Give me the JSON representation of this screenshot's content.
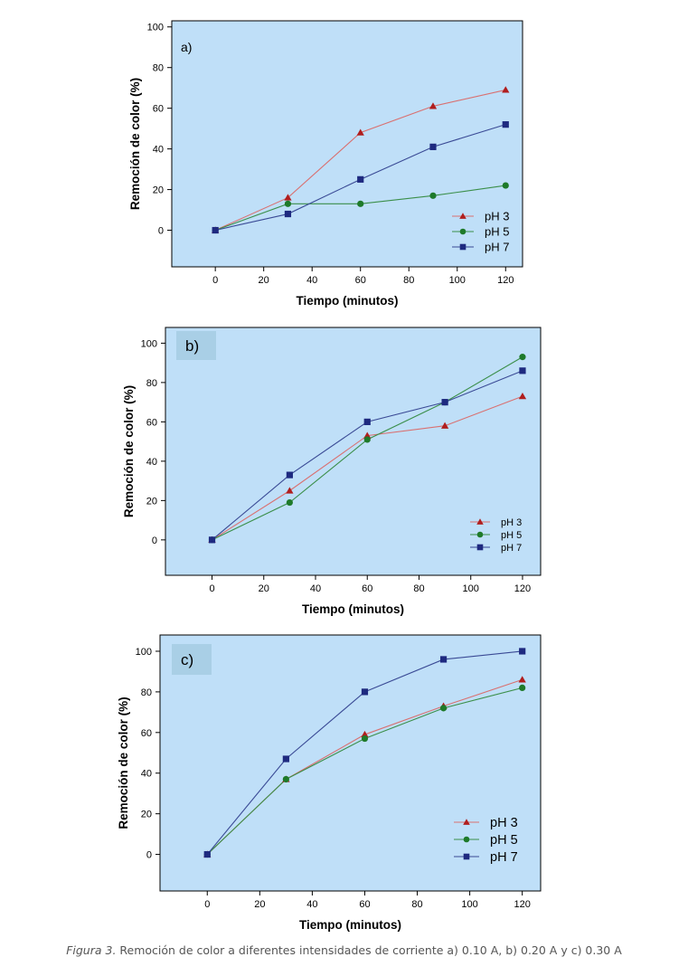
{
  "caption": {
    "label": "Figura 3.",
    "text": "Remoción de color a diferentes intensidades de corriente a) 0.10 A, b) 0.20 A y c) 0.30 A"
  },
  "colors": {
    "plot_bg": "#bfdff8",
    "axis": "#000000",
    "ph3": "#b01e1e",
    "ph5": "#1e7a2a",
    "ph7": "#1e2a80",
    "ph3_line": "#d97070",
    "ph5_line": "#3b8f4a",
    "ph7_line": "#3a4a95",
    "panel_label_bg": "#a9cfe6"
  },
  "chart_data": [
    {
      "type": "line",
      "panel_label": "a)",
      "xlabel": "Tiempo (minutos)",
      "ylabel": "Remoción de color (%)",
      "x": [
        0,
        30,
        60,
        90,
        120
      ],
      "xticks": [
        "0",
        "20",
        "40",
        "60",
        "80",
        "100",
        "120"
      ],
      "yticks": [
        "0",
        "20",
        "40",
        "60",
        "80",
        "100"
      ],
      "xlim": [
        -18,
        127
      ],
      "ylim": [
        -18,
        103
      ],
      "legend_position": "bottom-right",
      "series": [
        {
          "name": "pH 3",
          "marker": "triangle",
          "values": [
            0,
            16,
            48,
            61,
            69
          ]
        },
        {
          "name": "pH 5",
          "marker": "circle",
          "values": [
            0,
            13,
            13,
            17,
            22
          ]
        },
        {
          "name": "pH 7",
          "marker": "square",
          "values": [
            0,
            8,
            25,
            41,
            52
          ]
        }
      ]
    },
    {
      "type": "line",
      "panel_label": "b)",
      "xlabel": "Tiempo (minutos)",
      "ylabel": "Remoción de color (%)",
      "x": [
        0,
        30,
        60,
        90,
        120
      ],
      "xticks": [
        "0",
        "20",
        "40",
        "60",
        "80",
        "100",
        "120"
      ],
      "yticks": [
        "0",
        "20",
        "40",
        "60",
        "80",
        "100"
      ],
      "xlim": [
        -18,
        127
      ],
      "ylim": [
        -18,
        108
      ],
      "legend_position": "bottom-right",
      "series": [
        {
          "name": "pH 3",
          "marker": "triangle",
          "values": [
            0,
            25,
            53,
            58,
            73
          ]
        },
        {
          "name": "pH 5",
          "marker": "circle",
          "values": [
            0,
            19,
            51,
            70,
            93
          ]
        },
        {
          "name": "pH 7",
          "marker": "square",
          "values": [
            0,
            33,
            60,
            70,
            86
          ]
        }
      ]
    },
    {
      "type": "line",
      "panel_label": "c)",
      "xlabel": "Tiempo (minutos)",
      "ylabel": "Remoción de color (%)",
      "x": [
        0,
        30,
        60,
        90,
        120
      ],
      "xticks": [
        "0",
        "20",
        "40",
        "60",
        "80",
        "100",
        "120"
      ],
      "yticks": [
        "0",
        "20",
        "40",
        "60",
        "80",
        "100"
      ],
      "xlim": [
        -18,
        127
      ],
      "ylim": [
        -18,
        108
      ],
      "legend_position": "bottom-right",
      "series": [
        {
          "name": "pH 3",
          "marker": "triangle",
          "values": [
            0,
            37,
            59,
            73,
            86
          ]
        },
        {
          "name": "pH 5",
          "marker": "circle",
          "values": [
            0,
            37,
            57,
            72,
            82
          ]
        },
        {
          "name": "pH 7",
          "marker": "square",
          "values": [
            0,
            47,
            80,
            96,
            100
          ]
        }
      ]
    }
  ]
}
